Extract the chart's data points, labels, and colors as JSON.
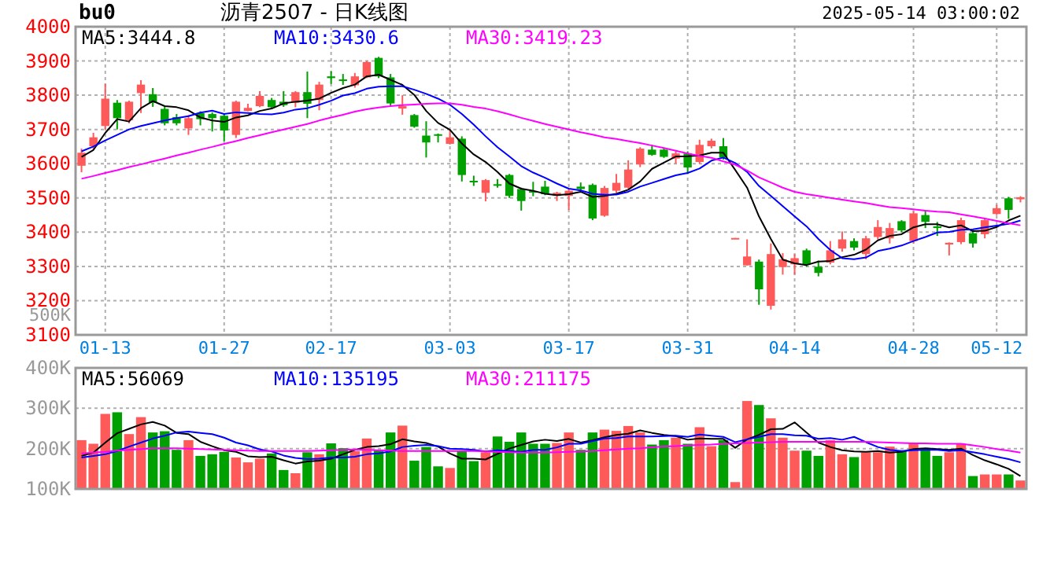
{
  "chart_data": [
    {
      "type": "candlestick",
      "title": "沥青2507 - 日K线图",
      "annotations": [
        "bu0",
        "2025-05-14 03:00:02"
      ],
      "categories": [
        null,
        null,
        "01-13",
        null,
        null,
        null,
        null,
        null,
        null,
        null,
        null,
        null,
        "01-27",
        null,
        null,
        null,
        null,
        null,
        null,
        null,
        null,
        "02-17",
        null,
        null,
        null,
        null,
        null,
        null,
        null,
        null,
        null,
        "03-03",
        null,
        null,
        null,
        null,
        null,
        null,
        null,
        null,
        null,
        "03-17",
        null,
        null,
        null,
        null,
        null,
        null,
        null,
        null,
        null,
        "03-31",
        null,
        null,
        null,
        null,
        null,
        null,
        null,
        null,
        "04-14",
        null,
        null,
        null,
        null,
        null,
        null,
        null,
        null,
        null,
        "04-28",
        null,
        null,
        null,
        null,
        null,
        null,
        "05-12",
        null,
        null
      ],
      "ohlc": [
        [
          3594,
          3644,
          3575,
          3632
        ],
        [
          3651,
          3690,
          3642,
          3677
        ],
        [
          3710,
          3833,
          3700,
          3790
        ],
        [
          3778,
          3786,
          3700,
          3733
        ],
        [
          3727,
          3784,
          3718,
          3781
        ],
        [
          3806,
          3844,
          3748,
          3831
        ],
        [
          3803,
          3821,
          3766,
          3778
        ],
        [
          3760,
          3766,
          3712,
          3718
        ],
        [
          3736,
          3745,
          3712,
          3718
        ],
        [
          3703,
          3742,
          3684,
          3733
        ],
        [
          3748,
          3753,
          3712,
          3730
        ],
        [
          3745,
          3750,
          3694,
          3733
        ],
        [
          3740,
          3745,
          3666,
          3697
        ],
        [
          3684,
          3784,
          3675,
          3781
        ],
        [
          3754,
          3775,
          3753,
          3763
        ],
        [
          3768,
          3812,
          3765,
          3798
        ],
        [
          3786,
          3792,
          3760,
          3765
        ],
        [
          3781,
          3812,
          3766,
          3771
        ],
        [
          3778,
          3812,
          3765,
          3809
        ],
        [
          3809,
          3869,
          3733,
          3775
        ],
        [
          3786,
          3839,
          3756,
          3831
        ],
        [
          3855,
          3870,
          3833,
          3850
        ],
        [
          3846,
          3862,
          3830,
          3842
        ],
        [
          3829,
          3865,
          3822,
          3855
        ],
        [
          3852,
          3900,
          3850,
          3897
        ],
        [
          3909,
          3912,
          3850,
          3855
        ],
        [
          3852,
          3862,
          3770,
          3776
        ],
        [
          3761,
          3800,
          3743,
          3768
        ],
        [
          3742,
          3745,
          3705,
          3708
        ],
        [
          3682,
          3724,
          3618,
          3662
        ],
        [
          3686,
          3688,
          3662,
          3682
        ],
        [
          3658,
          3700,
          3656,
          3677
        ],
        [
          3673,
          3680,
          3548,
          3567
        ],
        [
          3550,
          3565,
          3535,
          3548
        ],
        [
          3515,
          3555,
          3490,
          3552
        ],
        [
          3540,
          3555,
          3530,
          3536
        ],
        [
          3567,
          3570,
          3500,
          3506
        ],
        [
          3526,
          3530,
          3463,
          3491
        ],
        [
          3520,
          3547,
          3505,
          3518
        ],
        [
          3533,
          3550,
          3508,
          3511
        ],
        [
          3506,
          3518,
          3491,
          3515
        ],
        [
          3506,
          3525,
          3465,
          3521
        ],
        [
          3533,
          3545,
          3521,
          3526
        ],
        [
          3538,
          3542,
          3435,
          3440
        ],
        [
          3448,
          3535,
          3445,
          3529
        ],
        [
          3521,
          3570,
          3515,
          3544
        ],
        [
          3530,
          3610,
          3527,
          3583
        ],
        [
          3598,
          3648,
          3590,
          3644
        ],
        [
          3641,
          3655,
          3623,
          3626
        ],
        [
          3641,
          3645,
          3617,
          3620
        ],
        [
          3615,
          3636,
          3600,
          3630
        ],
        [
          3630,
          3636,
          3571,
          3589
        ],
        [
          3605,
          3670,
          3600,
          3655
        ],
        [
          3651,
          3673,
          3645,
          3667
        ],
        [
          3651,
          3675,
          3612,
          3618
        ],
        [
          3382,
          3383,
          3382,
          3383
        ],
        [
          3303,
          3379,
          3303,
          3329
        ],
        [
          3314,
          3320,
          3188,
          3233
        ],
        [
          3185,
          3367,
          3174,
          3336
        ],
        [
          3298,
          3339,
          3276,
          3321
        ],
        [
          3306,
          3336,
          3276,
          3324
        ],
        [
          3347,
          3352,
          3299,
          3306
        ],
        [
          3299,
          3317,
          3271,
          3281
        ],
        [
          3311,
          3374,
          3306,
          3347
        ],
        [
          3352,
          3402,
          3343,
          3379
        ],
        [
          3374,
          3382,
          3347,
          3355
        ],
        [
          3336,
          3389,
          3321,
          3382
        ],
        [
          3386,
          3435,
          3379,
          3415
        ],
        [
          3382,
          3427,
          3367,
          3412
        ],
        [
          3432,
          3435,
          3400,
          3405
        ],
        [
          3374,
          3461,
          3367,
          3455
        ],
        [
          3450,
          3465,
          3412,
          3430
        ],
        [
          3417,
          3430,
          3389,
          3412
        ],
        [
          3364,
          3370,
          3332,
          3369
        ],
        [
          3371,
          3442,
          3365,
          3435
        ],
        [
          3397,
          3406,
          3355,
          3367
        ],
        [
          3394,
          3439,
          3382,
          3435
        ],
        [
          3453,
          3480,
          3450,
          3470
        ],
        [
          3499,
          3503,
          3439,
          3465
        ],
        [
          3496,
          3505,
          3487,
          3502
        ]
      ],
      "colors": [
        "#ff5a5a",
        "#ff5a5a",
        "#ff5a5a",
        "#00a000",
        "#ff5a5a",
        "#ff5a5a",
        "#00a000",
        "#00a000",
        "#00a000",
        "#ff5a5a",
        "#00a000",
        "#00a000",
        "#00a000",
        "#ff5a5a",
        "#ff5a5a",
        "#ff5a5a",
        "#00a000",
        "#00a000",
        "#ff5a5a",
        "#00a000",
        "#ff5a5a",
        "#00a000",
        "#00a000",
        "#ff5a5a",
        "#ff5a5a",
        "#00a000",
        "#00a000",
        "#ff5a5a",
        "#00a000",
        "#00a000",
        "#00a000",
        "#ff5a5a",
        "#00a000",
        "#00a000",
        "#ff5a5a",
        "#00a000",
        "#00a000",
        "#00a000",
        "#00a000",
        "#00a000",
        "#ff5a5a",
        "#ff5a5a",
        "#00a000",
        "#00a000",
        "#ff5a5a",
        "#ff5a5a",
        "#ff5a5a",
        "#ff5a5a",
        "#00a000",
        "#00a000",
        "#ff5a5a",
        "#00a000",
        "#ff5a5a",
        "#ff5a5a",
        "#00a000",
        "#ff5a5a",
        "#ff5a5a",
        "#00a000",
        "#ff5a5a",
        "#ff5a5a",
        "#ff5a5a",
        "#00a000",
        "#00a000",
        "#ff5a5a",
        "#ff5a5a",
        "#00a000",
        "#ff5a5a",
        "#ff5a5a",
        "#ff5a5a",
        "#00a000",
        "#ff5a5a",
        "#00a000",
        "#00a000",
        "#ff5a5a",
        "#ff5a5a",
        "#00a000",
        "#ff5a5a",
        "#ff5a5a",
        "#00a000",
        "#ff5a5a"
      ],
      "series": [
        {
          "type": "line",
          "name": "MA5:3444.8",
          "color": "#000000",
          "values": [
            3620,
            3640,
            3690,
            3730,
            3723,
            3762,
            3783,
            3768,
            3765,
            3756,
            3735,
            3726,
            3722,
            3735,
            3741,
            3754,
            3761,
            3776,
            3781,
            3784,
            3790,
            3807,
            3821,
            3831,
            3855,
            3860,
            3845,
            3830,
            3801,
            3754,
            3719,
            3699,
            3659,
            3627,
            3605,
            3576,
            3542,
            3527,
            3521,
            3512,
            3508,
            3511,
            3518,
            3503,
            3506,
            3512,
            3524,
            3548,
            3585,
            3603,
            3621,
            3622,
            3624,
            3632,
            3632,
            3582,
            3530,
            3446,
            3380,
            3320,
            3309,
            3304,
            3314,
            3316,
            3327,
            3334,
            3349,
            3376,
            3389,
            3394,
            3414,
            3423,
            3423,
            3414,
            3420,
            3403,
            3404,
            3415,
            3434,
            3448
          ]
        },
        {
          "type": "line",
          "name": "MA10:3430.6",
          "color": "#0000ff",
          "values": [
            3636,
            3650,
            3668,
            3684,
            3700,
            3710,
            3718,
            3726,
            3733,
            3739,
            3749,
            3755,
            3745,
            3750,
            3748,
            3745,
            3744,
            3749,
            3758,
            3762,
            3772,
            3784,
            3799,
            3806,
            3819,
            3825,
            3826,
            3826,
            3816,
            3804,
            3790,
            3772,
            3745,
            3714,
            3680,
            3648,
            3621,
            3593,
            3574,
            3559,
            3542,
            3527,
            3522,
            3512,
            3509,
            3510,
            3518,
            3533,
            3544,
            3555,
            3566,
            3573,
            3586,
            3609,
            3618,
            3602,
            3576,
            3535,
            3506,
            3476,
            3446,
            3417,
            3380,
            3348,
            3324,
            3321,
            3326,
            3345,
            3352,
            3361,
            3374,
            3386,
            3399,
            3401,
            3407,
            3408,
            3414,
            3419,
            3424,
            3434
          ]
        },
        {
          "type": "line",
          "name": "MA30:3419.23",
          "color": "#ff00ff",
          "values": [
            3556,
            3564,
            3573,
            3581,
            3590,
            3598,
            3607,
            3615,
            3624,
            3632,
            3641,
            3649,
            3658,
            3666,
            3675,
            3683,
            3692,
            3700,
            3708,
            3716,
            3726,
            3735,
            3743,
            3752,
            3759,
            3764,
            3768,
            3771,
            3773,
            3775,
            3776,
            3776,
            3772,
            3766,
            3761,
            3753,
            3744,
            3734,
            3725,
            3716,
            3708,
            3700,
            3692,
            3685,
            3677,
            3672,
            3666,
            3660,
            3653,
            3646,
            3638,
            3630,
            3623,
            3617,
            3607,
            3597,
            3580,
            3560,
            3545,
            3530,
            3518,
            3511,
            3506,
            3500,
            3495,
            3490,
            3485,
            3479,
            3473,
            3470,
            3467,
            3463,
            3460,
            3458,
            3452,
            3446,
            3440,
            3433,
            3426,
            3420
          ]
        }
      ],
      "ylim": [
        3100,
        4000
      ],
      "yticks": [
        3100,
        3200,
        3300,
        3400,
        3500,
        3600,
        3700,
        3800,
        3900,
        4000
      ],
      "grid": true,
      "legend": "top left"
    },
    {
      "type": "bar",
      "annotations": [
        "500K"
      ],
      "categories": [
        null,
        null,
        null,
        null,
        null,
        null,
        null,
        null,
        null,
        null,
        null,
        null,
        null,
        null,
        null,
        null,
        null,
        null,
        null,
        null,
        null,
        null,
        null,
        null,
        null,
        null,
        null,
        null,
        null,
        null,
        null,
        null,
        null,
        null,
        null,
        null,
        null,
        null,
        null,
        null,
        null,
        null,
        null,
        null,
        null,
        null,
        null,
        null,
        null,
        null,
        null,
        null,
        null,
        null,
        null,
        null,
        null,
        null,
        null,
        null,
        null,
        null,
        null,
        null,
        null,
        null,
        null,
        null,
        null,
        null,
        null,
        null,
        null,
        null,
        null,
        null,
        null,
        null,
        null,
        null
      ],
      "values": [
        221000,
        212000,
        286000,
        290000,
        236000,
        278000,
        240000,
        243000,
        197000,
        221000,
        182000,
        186000,
        192000,
        178000,
        166000,
        175000,
        188000,
        147000,
        139000,
        191000,
        186000,
        213000,
        201000,
        194000,
        225000,
        197000,
        240000,
        257000,
        170000,
        204000,
        156000,
        152000,
        195000,
        169000,
        191000,
        230000,
        217000,
        240000,
        212000,
        212000,
        214000,
        240000,
        197000,
        240000,
        247000,
        244000,
        256000,
        240000,
        210000,
        221000,
        227000,
        212000,
        253000,
        206000,
        221000,
        117000,
        318000,
        308000,
        275000,
        227000,
        195000,
        195000,
        182000,
        221000,
        186000,
        179000,
        191000,
        191000,
        205000,
        195000,
        214000,
        201000,
        182000,
        191000,
        212000,
        132000,
        136000,
        136000,
        136000,
        121000
      ],
      "colors": [
        "#ff5a5a",
        "#ff5a5a",
        "#ff5a5a",
        "#00a000",
        "#ff5a5a",
        "#ff5a5a",
        "#00a000",
        "#00a000",
        "#00a000",
        "#ff5a5a",
        "#00a000",
        "#00a000",
        "#00a000",
        "#ff5a5a",
        "#ff5a5a",
        "#ff5a5a",
        "#00a000",
        "#00a000",
        "#ff5a5a",
        "#00a000",
        "#ff5a5a",
        "#00a000",
        "#00a000",
        "#ff5a5a",
        "#ff5a5a",
        "#00a000",
        "#00a000",
        "#ff5a5a",
        "#00a000",
        "#00a000",
        "#00a000",
        "#ff5a5a",
        "#00a000",
        "#00a000",
        "#ff5a5a",
        "#00a000",
        "#00a000",
        "#00a000",
        "#00a000",
        "#00a000",
        "#ff5a5a",
        "#ff5a5a",
        "#00a000",
        "#00a000",
        "#ff5a5a",
        "#ff5a5a",
        "#ff5a5a",
        "#ff5a5a",
        "#00a000",
        "#00a000",
        "#ff5a5a",
        "#00a000",
        "#ff5a5a",
        "#ff5a5a",
        "#00a000",
        "#ff5a5a",
        "#ff5a5a",
        "#00a000",
        "#ff5a5a",
        "#ff5a5a",
        "#ff5a5a",
        "#00a000",
        "#00a000",
        "#ff5a5a",
        "#ff5a5a",
        "#00a000",
        "#ff5a5a",
        "#ff5a5a",
        "#ff5a5a",
        "#00a000",
        "#ff5a5a",
        "#00a000",
        "#00a000",
        "#ff5a5a",
        "#ff5a5a",
        "#00a000",
        "#ff5a5a",
        "#ff5a5a",
        "#00a000",
        "#ff5a5a"
      ],
      "series": [
        {
          "type": "line",
          "name": "MA5:56069",
          "color": "#000000",
          "values": [
            182000,
            190000,
            215000,
            238000,
            249000,
            260000,
            266000,
            257000,
            239000,
            236000,
            217000,
            206000,
            196000,
            192000,
            181000,
            179000,
            180000,
            171000,
            163000,
            168000,
            170000,
            175000,
            186000,
            197000,
            204000,
            206000,
            211000,
            223000,
            218000,
            214000,
            205000,
            188000,
            175000,
            175000,
            173000,
            187000,
            200000,
            209000,
            218000,
            222000,
            219000,
            224000,
            215000,
            221000,
            228000,
            234000,
            237000,
            245000,
            239000,
            234000,
            231000,
            222000,
            225000,
            224000,
            224000,
            202000,
            223000,
            234000,
            248000,
            249000,
            265000,
            240000,
            215000,
            204000,
            196000,
            193000,
            192000,
            194000,
            190000,
            192000,
            199000,
            201000,
            199000,
            197000,
            200000,
            184000,
            171000,
            161000,
            150000,
            132000
          ]
        },
        {
          "type": "line",
          "name": "MA10:135195",
          "color": "#0000ff",
          "values": [
            178000,
            182000,
            186000,
            194000,
            205000,
            215000,
            225000,
            232000,
            240000,
            242000,
            239000,
            236000,
            227000,
            215000,
            208000,
            198000,
            193000,
            183000,
            177000,
            174000,
            175000,
            178000,
            178000,
            180000,
            186000,
            188000,
            193000,
            204000,
            207000,
            209000,
            206000,
            200000,
            199000,
            197000,
            193000,
            196000,
            194000,
            192000,
            197000,
            197000,
            203000,
            212000,
            212000,
            219000,
            225000,
            226000,
            230000,
            230000,
            230000,
            231000,
            232000,
            229000,
            235000,
            232000,
            229000,
            216000,
            223000,
            229000,
            236000,
            236000,
            233000,
            232000,
            224000,
            226000,
            222000,
            229000,
            216000,
            204000,
            197000,
            194000,
            196000,
            197000,
            197000,
            194000,
            196000,
            191000,
            186000,
            180000,
            174000,
            166000
          ]
        },
        {
          "type": "line",
          "name": "MA30:211175",
          "color": "#ff00ff",
          "values": [
            188000,
            190000,
            192000,
            195000,
            197000,
            199000,
            201000,
            201000,
            201000,
            200000,
            199000,
            198000,
            197000,
            196000,
            195000,
            194000,
            194000,
            194000,
            194000,
            194000,
            195000,
            196000,
            197000,
            198000,
            197000,
            196000,
            195000,
            194000,
            194000,
            194000,
            194000,
            194000,
            194000,
            194000,
            193000,
            192000,
            191000,
            190000,
            190000,
            190000,
            191000,
            192000,
            193000,
            194000,
            196000,
            198000,
            200000,
            201000,
            203000,
            205000,
            206000,
            208000,
            209000,
            210000,
            212000,
            213000,
            214000,
            215000,
            216000,
            217000,
            217000,
            217000,
            217000,
            217000,
            217000,
            217000,
            217000,
            216000,
            215000,
            214000,
            213000,
            213000,
            212000,
            212000,
            212000,
            208000,
            204000,
            199000,
            195000,
            190000
          ]
        }
      ],
      "ylim": [
        100000,
        400000
      ],
      "yticks": [
        {
          "value": 100000,
          "label": "100K"
        },
        {
          "value": 200000,
          "label": "200K"
        },
        {
          "value": 300000,
          "label": "300K"
        },
        {
          "value": 400000,
          "label": "400K"
        }
      ],
      "grid": true,
      "legend": "top left",
      "tick_labels": "y"
    }
  ]
}
